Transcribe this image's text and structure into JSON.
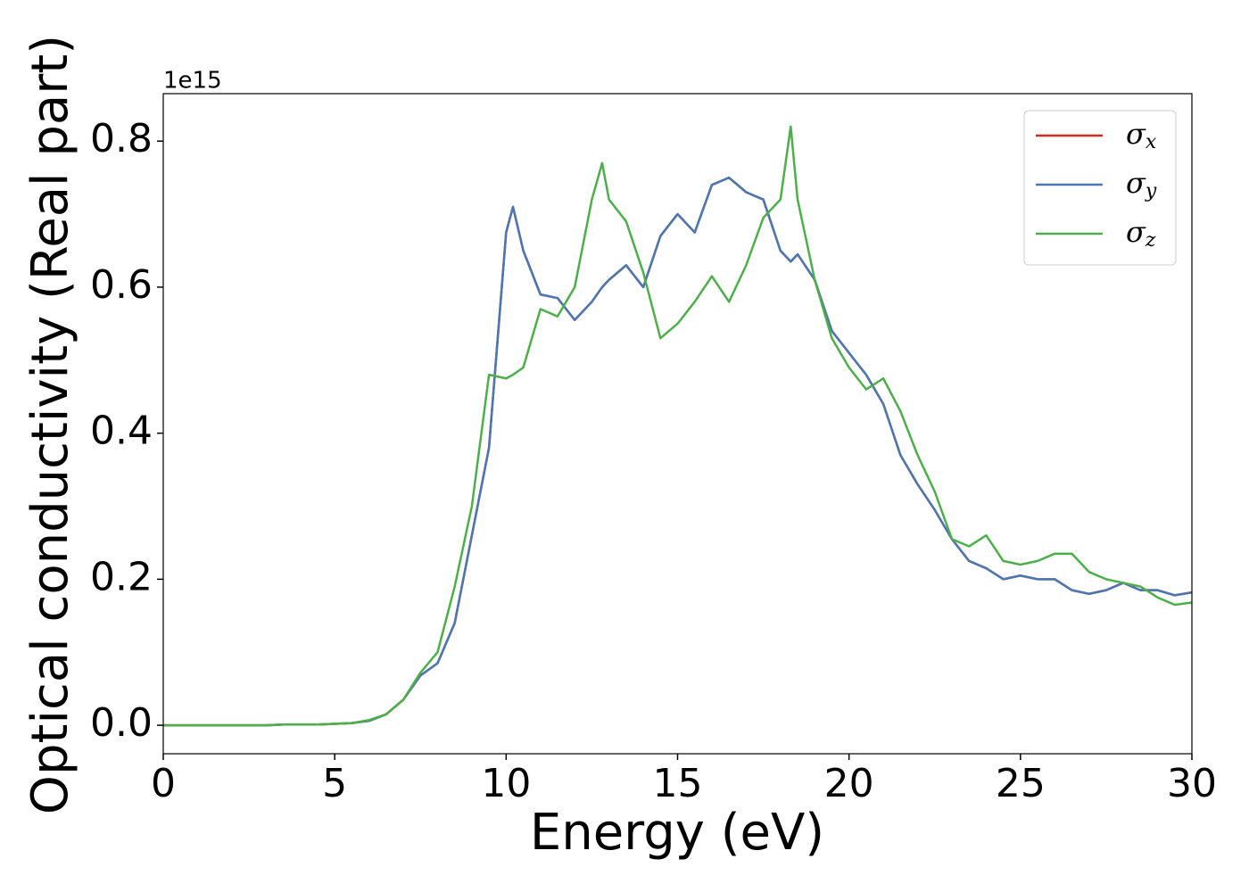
{
  "chart_data": {
    "type": "line",
    "xlabel": "Energy (eV)",
    "ylabel": "Optical conductivity (Real part)",
    "y_offset_label": "1e15",
    "x": [
      0,
      0.5,
      1,
      1.5,
      2,
      2.5,
      3,
      3.5,
      4,
      4.5,
      5,
      5.5,
      6,
      6.5,
      7,
      7.5,
      8,
      8.5,
      9,
      9.5,
      10,
      10.2,
      10.5,
      11,
      11.5,
      12,
      12.5,
      12.8,
      13,
      13.5,
      14,
      14.5,
      15,
      15.5,
      16,
      16.5,
      17,
      17.5,
      18,
      18.3,
      18.5,
      19,
      19.5,
      20,
      20.5,
      21,
      21.5,
      22,
      22.5,
      23,
      23.5,
      24,
      24.5,
      25,
      25.5,
      26,
      26.5,
      27,
      27.5,
      28,
      28.5,
      29,
      29.5,
      30
    ],
    "series": [
      {
        "name": "σx",
        "color": "#d62728",
        "values": [
          0,
          0,
          0,
          0,
          0,
          0,
          0,
          0.001,
          0.001,
          0.001,
          0.002,
          0.003,
          0.006,
          0.015,
          0.035,
          0.068,
          0.085,
          0.14,
          0.26,
          0.38,
          0.675,
          0.71,
          0.65,
          0.59,
          0.585,
          0.555,
          0.58,
          0.6,
          0.61,
          0.63,
          0.6,
          0.67,
          0.7,
          0.675,
          0.74,
          0.75,
          0.73,
          0.72,
          0.65,
          0.635,
          0.645,
          0.61,
          0.54,
          0.51,
          0.48,
          0.44,
          0.37,
          0.33,
          0.295,
          0.255,
          0.225,
          0.215,
          0.2,
          0.205,
          0.2,
          0.2,
          0.185,
          0.18,
          0.185,
          0.195,
          0.185,
          0.185,
          0.178,
          0.182
        ]
      },
      {
        "name": "σy",
        "color": "#4a78b0",
        "values": [
          0,
          0,
          0,
          0,
          0,
          0,
          0,
          0.001,
          0.001,
          0.001,
          0.002,
          0.003,
          0.006,
          0.015,
          0.035,
          0.068,
          0.085,
          0.14,
          0.26,
          0.38,
          0.675,
          0.71,
          0.65,
          0.59,
          0.585,
          0.555,
          0.58,
          0.6,
          0.61,
          0.63,
          0.6,
          0.67,
          0.7,
          0.675,
          0.74,
          0.75,
          0.73,
          0.72,
          0.65,
          0.635,
          0.645,
          0.61,
          0.54,
          0.51,
          0.48,
          0.44,
          0.37,
          0.33,
          0.295,
          0.255,
          0.225,
          0.215,
          0.2,
          0.205,
          0.2,
          0.2,
          0.185,
          0.18,
          0.185,
          0.195,
          0.185,
          0.185,
          0.178,
          0.182
        ]
      },
      {
        "name": "σz",
        "color": "#4daf4a",
        "values": [
          0,
          0,
          0,
          0,
          0,
          0,
          0,
          0.001,
          0.001,
          0.001,
          0.002,
          0.003,
          0.007,
          0.015,
          0.035,
          0.072,
          0.1,
          0.19,
          0.3,
          0.48,
          0.475,
          0.48,
          0.49,
          0.57,
          0.56,
          0.6,
          0.72,
          0.77,
          0.72,
          0.69,
          0.62,
          0.53,
          0.55,
          0.58,
          0.615,
          0.58,
          0.63,
          0.695,
          0.72,
          0.82,
          0.72,
          0.61,
          0.53,
          0.49,
          0.46,
          0.475,
          0.43,
          0.37,
          0.32,
          0.255,
          0.245,
          0.26,
          0.225,
          0.22,
          0.225,
          0.235,
          0.235,
          0.21,
          0.2,
          0.195,
          0.19,
          0.175,
          0.165,
          0.168
        ]
      }
    ],
    "xlim": [
      0,
      30
    ],
    "ylim": [
      -0.039,
      0.865
    ],
    "xticks": [
      0,
      5,
      10,
      15,
      20,
      25,
      30
    ],
    "yticks": [
      {
        "value": 0,
        "label": "0.0"
      },
      0.2,
      0.4,
      0.6,
      0.8
    ],
    "legend": "upper right",
    "grid": false
  }
}
